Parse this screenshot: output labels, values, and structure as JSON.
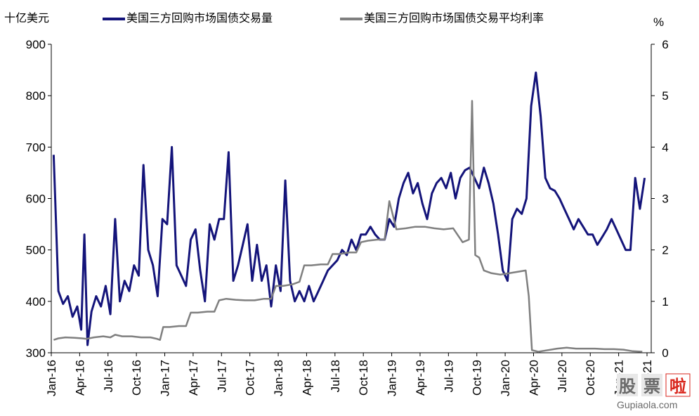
{
  "chart_data": {
    "type": "line",
    "left_unit": "十亿美元",
    "right_unit": "%",
    "ylim_left": [
      300,
      900
    ],
    "ylim_right": [
      0,
      6
    ],
    "y_ticks_left": [
      300,
      400,
      500,
      600,
      700,
      800,
      900
    ],
    "y_ticks_right": [
      0,
      1,
      2,
      3,
      4,
      5,
      6
    ],
    "x_tick_labels": [
      "Jan-16",
      "Apr-16",
      "Jul-16",
      "Oct-16",
      "Jan-17",
      "Apr-17",
      "Jul-17",
      "Oct-17",
      "Jan-18",
      "Apr-18",
      "Jul-18",
      "Oct-18",
      "Jan-19",
      "Apr-19",
      "Jul-19",
      "Oct-19",
      "Jan-20",
      "Apr-20",
      "Jul-20",
      "Oct-20",
      "Jan-21",
      "Apr-21"
    ],
    "grid": false,
    "legend_position": "top",
    "series": [
      {
        "name": "美国三方回购市场国债交易量",
        "axis": "left",
        "color": "#14147a",
        "points": [
          [
            "Jan-16",
            685
          ],
          [
            "Jan-16",
            420
          ],
          [
            "Feb-16",
            395
          ],
          [
            "Feb-16",
            410
          ],
          [
            "Mar-16",
            370
          ],
          [
            "Mar-16",
            390
          ],
          [
            "Apr-16",
            345
          ],
          [
            "Apr-16",
            530
          ],
          [
            "Apr-16",
            315
          ],
          [
            "May-16",
            380
          ],
          [
            "May-16",
            410
          ],
          [
            "Jun-16",
            390
          ],
          [
            "Jun-16",
            430
          ],
          [
            "Jul-16",
            375
          ],
          [
            "Jul-16",
            560
          ],
          [
            "Aug-16",
            400
          ],
          [
            "Aug-16",
            440
          ],
          [
            "Sep-16",
            420
          ],
          [
            "Sep-16",
            470
          ],
          [
            "Oct-16",
            450
          ],
          [
            "Oct-16",
            665
          ],
          [
            "Nov-16",
            500
          ],
          [
            "Nov-16",
            470
          ],
          [
            "Dec-16",
            410
          ],
          [
            "Dec-16",
            560
          ],
          [
            "Jan-17",
            550
          ],
          [
            "Jan-17",
            700
          ],
          [
            "Feb-17",
            470
          ],
          [
            "Feb-17",
            450
          ],
          [
            "Mar-17",
            430
          ],
          [
            "Mar-17",
            520
          ],
          [
            "Apr-17",
            540
          ],
          [
            "Apr-17",
            460
          ],
          [
            "May-17",
            400
          ],
          [
            "May-17",
            550
          ],
          [
            "Jun-17",
            520
          ],
          [
            "Jun-17",
            560
          ],
          [
            "Jul-17",
            560
          ],
          [
            "Jul-17",
            690
          ],
          [
            "Aug-17",
            440
          ],
          [
            "Aug-17",
            470
          ],
          [
            "Sep-17",
            510
          ],
          [
            "Sep-17",
            550
          ],
          [
            "Oct-17",
            440
          ],
          [
            "Oct-17",
            510
          ],
          [
            "Nov-17",
            440
          ],
          [
            "Nov-17",
            470
          ],
          [
            "Dec-17",
            390
          ],
          [
            "Dec-17",
            470
          ],
          [
            "Jan-18",
            420
          ],
          [
            "Jan-18",
            635
          ],
          [
            "Feb-18",
            440
          ],
          [
            "Feb-18",
            400
          ],
          [
            "Mar-18",
            420
          ],
          [
            "Mar-18",
            400
          ],
          [
            "Apr-18",
            430
          ],
          [
            "Apr-18",
            400
          ],
          [
            "May-18",
            420
          ],
          [
            "May-18",
            440
          ],
          [
            "Jun-18",
            460
          ],
          [
            "Jun-18",
            470
          ],
          [
            "Jul-18",
            480
          ],
          [
            "Jul-18",
            500
          ],
          [
            "Aug-18",
            490
          ],
          [
            "Aug-18",
            520
          ],
          [
            "Sep-18",
            500
          ],
          [
            "Sep-18",
            530
          ],
          [
            "Oct-18",
            530
          ],
          [
            "Oct-18",
            545
          ],
          [
            "Nov-18",
            530
          ],
          [
            "Nov-18",
            520
          ],
          [
            "Dec-18",
            520
          ],
          [
            "Dec-18",
            560
          ],
          [
            "Jan-19",
            545
          ],
          [
            "Jan-19",
            600
          ],
          [
            "Feb-19",
            630
          ],
          [
            "Feb-19",
            650
          ],
          [
            "Mar-19",
            610
          ],
          [
            "Mar-19",
            630
          ],
          [
            "Apr-19",
            590
          ],
          [
            "Apr-19",
            560
          ],
          [
            "May-19",
            610
          ],
          [
            "May-19",
            630
          ],
          [
            "Jun-19",
            640
          ],
          [
            "Jun-19",
            620
          ],
          [
            "Jul-19",
            650
          ],
          [
            "Jul-19",
            600
          ],
          [
            "Aug-19",
            640
          ],
          [
            "Aug-19",
            655
          ],
          [
            "Sep-19",
            660
          ],
          [
            "Sep-19",
            640
          ],
          [
            "Oct-19",
            620
          ],
          [
            "Oct-19",
            660
          ],
          [
            "Nov-19",
            630
          ],
          [
            "Nov-19",
            590
          ],
          [
            "Dec-19",
            530
          ],
          [
            "Dec-19",
            460
          ],
          [
            "Jan-20",
            440
          ],
          [
            "Jan-20",
            560
          ],
          [
            "Feb-20",
            580
          ],
          [
            "Feb-20",
            570
          ],
          [
            "Mar-20",
            600
          ],
          [
            "Mar-20",
            780
          ],
          [
            "Apr-20",
            845
          ],
          [
            "Apr-20",
            760
          ],
          [
            "May-20",
            640
          ],
          [
            "May-20",
            620
          ],
          [
            "Jun-20",
            615
          ],
          [
            "Jun-20",
            600
          ],
          [
            "Jul-20",
            580
          ],
          [
            "Jul-20",
            560
          ],
          [
            "Aug-20",
            540
          ],
          [
            "Aug-20",
            560
          ],
          [
            "Sep-20",
            545
          ],
          [
            "Sep-20",
            530
          ],
          [
            "Oct-20",
            530
          ],
          [
            "Oct-20",
            510
          ],
          [
            "Nov-20",
            525
          ],
          [
            "Nov-20",
            540
          ],
          [
            "Dec-20",
            560
          ],
          [
            "Dec-20",
            540
          ],
          [
            "Jan-21",
            520
          ],
          [
            "Jan-21",
            500
          ],
          [
            "Feb-21",
            500
          ],
          [
            "Feb-21",
            640
          ],
          [
            "Mar-21",
            580
          ],
          [
            "Mar-21",
            640
          ]
        ]
      },
      {
        "name": "美国三方回购市场国债交易平均利率",
        "axis": "right",
        "color": "#7f7f7f",
        "points": [
          [
            "Jan-16",
            0.25
          ],
          [
            "Jan-16",
            0.28
          ],
          [
            "Feb-16",
            0.3
          ],
          [
            "Mar-16",
            0.29
          ],
          [
            "Apr-16",
            0.28
          ],
          [
            "Apr-16",
            0.27
          ],
          [
            "May-16",
            0.3
          ],
          [
            "Jun-16",
            0.32
          ],
          [
            "Jul-16",
            0.3
          ],
          [
            "Jul-16",
            0.35
          ],
          [
            "Aug-16",
            0.32
          ],
          [
            "Sep-16",
            0.32
          ],
          [
            "Oct-16",
            0.3
          ],
          [
            "Nov-16",
            0.3
          ],
          [
            "Dec-16",
            0.27
          ],
          [
            "Dec-16",
            0.25
          ],
          [
            "Dec-16",
            0.5
          ],
          [
            "Jan-17",
            0.5
          ],
          [
            "Feb-17",
            0.52
          ],
          [
            "Mar-17",
            0.52
          ],
          [
            "Mar-17",
            0.78
          ],
          [
            "Apr-17",
            0.78
          ],
          [
            "May-17",
            0.8
          ],
          [
            "Jun-17",
            0.8
          ],
          [
            "Jun-17",
            1.02
          ],
          [
            "Jul-17",
            1.05
          ],
          [
            "Aug-17",
            1.03
          ],
          [
            "Sep-17",
            1.02
          ],
          [
            "Oct-17",
            1.02
          ],
          [
            "Nov-17",
            1.05
          ],
          [
            "Dec-17",
            1.05
          ],
          [
            "Dec-17",
            1.3
          ],
          [
            "Jan-18",
            1.3
          ],
          [
            "Feb-18",
            1.33
          ],
          [
            "Mar-18",
            1.38
          ],
          [
            "Mar-18",
            1.7
          ],
          [
            "Apr-18",
            1.7
          ],
          [
            "May-18",
            1.72
          ],
          [
            "Jun-18",
            1.72
          ],
          [
            "Jun-18",
            1.92
          ],
          [
            "Jul-18",
            1.92
          ],
          [
            "Aug-18",
            1.95
          ],
          [
            "Sep-18",
            1.95
          ],
          [
            "Sep-18",
            2.15
          ],
          [
            "Oct-18",
            2.18
          ],
          [
            "Nov-18",
            2.2
          ],
          [
            "Dec-18",
            2.2
          ],
          [
            "Dec-18",
            2.95
          ],
          [
            "Jan-19",
            2.4
          ],
          [
            "Feb-19",
            2.42
          ],
          [
            "Mar-19",
            2.45
          ],
          [
            "Apr-19",
            2.45
          ],
          [
            "May-19",
            2.42
          ],
          [
            "Jun-19",
            2.4
          ],
          [
            "Jul-19",
            2.42
          ],
          [
            "Aug-19",
            2.15
          ],
          [
            "Sep-19",
            2.2
          ],
          [
            "Sep-19",
            4.9
          ],
          [
            "Sep-19",
            1.9
          ],
          [
            "Oct-19",
            1.85
          ],
          [
            "Oct-19",
            1.6
          ],
          [
            "Nov-19",
            1.55
          ],
          [
            "Dec-19",
            1.52
          ],
          [
            "Jan-20",
            1.55
          ],
          [
            "Feb-20",
            1.58
          ],
          [
            "Mar-20",
            1.6
          ],
          [
            "Mar-20",
            1.1
          ],
          [
            "Mar-20",
            0.05
          ],
          [
            "Apr-20",
            0.02
          ],
          [
            "May-20",
            0.05
          ],
          [
            "Jun-20",
            0.08
          ],
          [
            "Jul-20",
            0.1
          ],
          [
            "Aug-20",
            0.08
          ],
          [
            "Sep-20",
            0.08
          ],
          [
            "Oct-20",
            0.08
          ],
          [
            "Nov-20",
            0.07
          ],
          [
            "Dec-20",
            0.07
          ],
          [
            "Jan-21",
            0.06
          ],
          [
            "Feb-21",
            0.03
          ],
          [
            "Mar-21",
            0.02
          ]
        ]
      }
    ]
  },
  "watermark": {
    "characters": [
      "股",
      "票",
      "啦"
    ],
    "site": "Gupiaola.com",
    "colors": [
      "#6a6a6a",
      "#6a6a6a",
      "#d9261c"
    ]
  }
}
